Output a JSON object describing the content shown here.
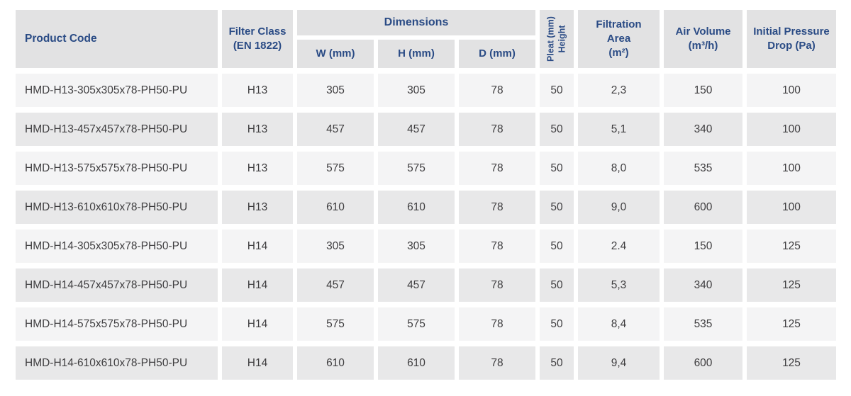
{
  "colors": {
    "header_text": "#2a4b85",
    "header_bg": "#e2e2e3",
    "row_odd_bg": "#f4f4f5",
    "row_even_bg": "#e8e8e9",
    "body_text": "#3f3e40",
    "background": "#ffffff"
  },
  "table": {
    "header": {
      "product_code": "Product Code",
      "filter_class": {
        "line1": "Filter Class",
        "line2": "(EN 1822)"
      },
      "dimensions": {
        "title": "Dimensions",
        "w": "W (mm)",
        "h": "H (mm)",
        "d": "D (mm)"
      },
      "pleat_height": {
        "line1": "Pleat (mm)",
        "line2": "Height"
      },
      "filtration_area": {
        "line1": "Filtration",
        "line2": "Area",
        "line3": "(m²)"
      },
      "air_volume": {
        "line1": "Air Volume",
        "line2": "(m³/h)"
      },
      "initial_pressure_drop": {
        "line1": "Initial Pressure",
        "line2": "Drop (Pa)"
      }
    },
    "rows": [
      {
        "product_code": "HMD-H13-305x305x78-PH50-PU",
        "filter_class": "H13",
        "w_mm": "305",
        "h_mm": "305",
        "d_mm": "78",
        "pleat_height_mm": "50",
        "filtration_area_m2": "2,3",
        "air_volume_m3h": "150",
        "initial_pressure_drop_pa": "100"
      },
      {
        "product_code": "HMD-H13-457x457x78-PH50-PU",
        "filter_class": "H13",
        "w_mm": "457",
        "h_mm": "457",
        "d_mm": "78",
        "pleat_height_mm": "50",
        "filtration_area_m2": "5,1",
        "air_volume_m3h": "340",
        "initial_pressure_drop_pa": "100"
      },
      {
        "product_code": "HMD-H13-575x575x78-PH50-PU",
        "filter_class": "H13",
        "w_mm": "575",
        "h_mm": "575",
        "d_mm": "78",
        "pleat_height_mm": "50",
        "filtration_area_m2": "8,0",
        "air_volume_m3h": "535",
        "initial_pressure_drop_pa": "100"
      },
      {
        "product_code": "HMD-H13-610x610x78-PH50-PU",
        "filter_class": "H13",
        "w_mm": "610",
        "h_mm": "610",
        "d_mm": "78",
        "pleat_height_mm": "50",
        "filtration_area_m2": "9,0",
        "air_volume_m3h": "600",
        "initial_pressure_drop_pa": "100"
      },
      {
        "product_code": "HMD-H14-305x305x78-PH50-PU",
        "filter_class": "H14",
        "w_mm": "305",
        "h_mm": "305",
        "d_mm": "78",
        "pleat_height_mm": "50",
        "filtration_area_m2": "2.4",
        "air_volume_m3h": "150",
        "initial_pressure_drop_pa": "125"
      },
      {
        "product_code": "HMD-H14-457x457x78-PH50-PU",
        "filter_class": "H14",
        "w_mm": "457",
        "h_mm": "457",
        "d_mm": "78",
        "pleat_height_mm": "50",
        "filtration_area_m2": "5,3",
        "air_volume_m3h": "340",
        "initial_pressure_drop_pa": "125"
      },
      {
        "product_code": "HMD-H14-575x575x78-PH50-PU",
        "filter_class": "H14",
        "w_mm": "575",
        "h_mm": "575",
        "d_mm": "78",
        "pleat_height_mm": "50",
        "filtration_area_m2": "8,4",
        "air_volume_m3h": "535",
        "initial_pressure_drop_pa": "125"
      },
      {
        "product_code": "HMD-H14-610x610x78-PH50-PU",
        "filter_class": "H14",
        "w_mm": "610",
        "h_mm": "610",
        "d_mm": "78",
        "pleat_height_mm": "50",
        "filtration_area_m2": "9,4",
        "air_volume_m3h": "600",
        "initial_pressure_drop_pa": "125"
      }
    ]
  }
}
